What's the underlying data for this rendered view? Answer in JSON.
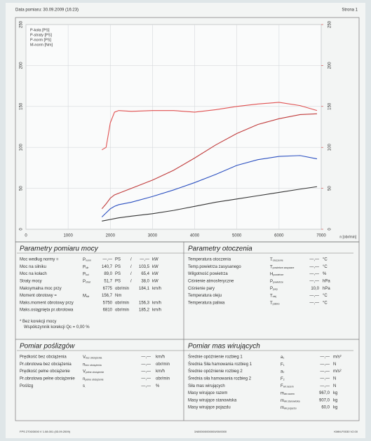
{
  "header": {
    "left": "Data pomiaru: 30.09.2009 (16:23)",
    "right": "Strona 1"
  },
  "chart_data": {
    "type": "line",
    "x_label": "n [obr/min]",
    "x": [
      1800,
      1900,
      2000,
      2100,
      2200,
      2500,
      3000,
      3500,
      4000,
      4500,
      5000,
      5500,
      6000,
      6500,
      6900
    ],
    "series": [
      {
        "name": "P-koła [PS]",
        "color": "#2a4fc0",
        "values": [
          15,
          20,
          25,
          28,
          30,
          33,
          40,
          48,
          57,
          67,
          78,
          85,
          89,
          90,
          86
        ]
      },
      {
        "name": "P-straty [PS]",
        "color": "#333333",
        "values": [
          10,
          11,
          12,
          13,
          14,
          16,
          19,
          23,
          28,
          33,
          37,
          41,
          45,
          49,
          52
        ]
      },
      {
        "name": "P-norm [PS]",
        "color": "#c03a3a",
        "values": [
          25,
          31,
          38,
          42,
          44,
          50,
          60,
          72,
          87,
          103,
          117,
          128,
          135,
          140,
          141
        ]
      },
      {
        "name": "M-norm [Nm]",
        "color": "#e05050",
        "axis": "y2",
        "values": [
          97,
          100,
          130,
          143,
          145,
          144,
          145,
          145,
          143,
          146,
          150,
          153,
          155,
          151,
          145
        ]
      }
    ],
    "xlim": [
      0,
      7000
    ],
    "xticks": [
      0,
      1000,
      2000,
      3000,
      4000,
      5000,
      6000,
      7000
    ],
    "ylim": [
      0,
      250
    ],
    "yticks": [
      0,
      50,
      100,
      150,
      200,
      250
    ],
    "y2lim": [
      0,
      250
    ],
    "y2ticks": [
      0,
      50,
      100,
      150,
      200,
      250
    ],
    "y2_color": "#d04040",
    "grid": true,
    "legend": "top-left"
  },
  "power": {
    "title": "Parametry pomiaru mocy",
    "rows": [
      {
        "label": "Moc według normy =",
        "sym": {
          "main": "P",
          "sub": "norm"
        },
        "cells": [
          "—,—",
          "PS",
          "/",
          "—,—",
          "kW"
        ],
        "color": "#d03030"
      },
      {
        "label": "Moc na silniku",
        "sym": {
          "main": "P",
          "sub": "silr"
        },
        "cells": [
          "140,7",
          "PS",
          "/",
          "103,5",
          "kW"
        ],
        "color": "#d03030"
      },
      {
        "label": "Moc na kołach",
        "sym": {
          "main": "P",
          "sub": "koł"
        },
        "cells": [
          "89,0",
          "PS",
          "/",
          "65,4",
          "kW"
        ],
        "color": "#2a4fc0"
      },
      {
        "label": "Straty mocy",
        "sym": {
          "main": "P",
          "sub": "strat"
        },
        "cells": [
          "51,7",
          "PS",
          "/",
          "38,0",
          "kW"
        ],
        "color": "#3a9a5a"
      },
      {
        "label": "Maksymalna moc przy",
        "cells": [
          "6775",
          "obr/min",
          "184,1",
          "km/h"
        ]
      },
      {
        "label": "Moment obrotowy =",
        "sym": {
          "main": "M",
          "sub": "silr"
        },
        "cells": [
          "156,7",
          "Nm"
        ],
        "color": "#d03030"
      },
      {
        "label": "Maks.moment obrotowy przy",
        "cells": [
          "5750",
          "obr/min",
          "156,3",
          "km/h"
        ]
      },
      {
        "label": "Maks.osiągnięta pr.obrotowa",
        "cells": [
          "6810",
          "obr/min",
          "185,2",
          "km/h"
        ]
      }
    ],
    "notes": [
      "* Bez korekcji mocy",
      "Współczynnik korekcji Qc = 0,00 %"
    ]
  },
  "ambient": {
    "title": "Parametry otoczenia",
    "rows": [
      {
        "label": "Temperatura otoczenia",
        "sym": {
          "main": "T",
          "sub": "otoczenie"
        },
        "cells": [
          "—,—",
          "°C"
        ]
      },
      {
        "label": "Temp.powietrza zasysanego",
        "sym": {
          "main": "T",
          "sub": "powietrze zasysane"
        },
        "cells": [
          "—,—",
          "°C"
        ]
      },
      {
        "label": "Wilgotność powietrza",
        "sym": {
          "main": "H",
          "sub": "powietrze"
        },
        "cells": [
          "—,—",
          "%"
        ]
      },
      {
        "label": "Ciśnienie atmosferyczne",
        "sym": {
          "main": "P",
          "sub": "powietrze"
        },
        "cells": [
          "—,—",
          "hPa"
        ]
      },
      {
        "label": "Ciśnienie pary",
        "sym": {
          "main": "P",
          "sub": "pary"
        },
        "cells": [
          "10,0",
          "hPa"
        ]
      },
      {
        "label": "Temperatura oleju",
        "sym": {
          "main": "T",
          "sub": "olej"
        },
        "cells": [
          "—,—",
          "°C"
        ]
      },
      {
        "label": "Temperatura paliwa",
        "sym": {
          "main": "T",
          "sub": "paliwo"
        },
        "cells": [
          "—,—",
          "°C"
        ]
      }
    ]
  },
  "slip": {
    "title": "Pomiar poślizgów",
    "rows": [
      {
        "label": "Prędkość bez obciążenia",
        "sym": {
          "main": "V",
          "sub": "bez obciążenia"
        },
        "cells": [
          "—,—",
          "km/h"
        ]
      },
      {
        "label": "Pr.obrotowa bez obciążenia",
        "sym": {
          "main": "n",
          "sub": "bez obciążenia"
        },
        "cells": [
          "—,—",
          "obr/min"
        ]
      },
      {
        "label": "Prędkość pełne obciążenie",
        "sym": {
          "main": "V",
          "sub": "pełne obciążenie"
        },
        "cells": [
          "—,—",
          "km/h"
        ]
      },
      {
        "label": "Pr.obrotowa pełne obciążenie",
        "sym": {
          "main": "n",
          "sub": "pełne obciążenie"
        },
        "cells": [
          "—,—",
          "obr/min"
        ]
      },
      {
        "label": "Poślizg",
        "sym": {
          "main": "s",
          "sub": "."
        },
        "cells": [
          "—,—",
          "%"
        ]
      }
    ]
  },
  "masses": {
    "title": "Pomiar mas wirujących",
    "rows": [
      {
        "label": "Średnie opóźnienie rozbieg 1",
        "sym": {
          "main": "a",
          "sub": "1"
        },
        "cells": [
          "—,—",
          "m/s²"
        ]
      },
      {
        "label": "Średnia Siła hamowania rozbieg 1",
        "sym": {
          "main": "F",
          "sub": "1"
        },
        "cells": [
          "—,—",
          "N"
        ]
      },
      {
        "label": "Średnie opóźnienie rozbieg 2",
        "sym": {
          "main": "a",
          "sub": "2"
        },
        "cells": [
          "—,—",
          "m/s²"
        ]
      },
      {
        "label": "Średnia siła hamowania rozbieg 2",
        "sym": {
          "main": "F",
          "sub": "2"
        },
        "cells": [
          "—,—",
          "N"
        ]
      },
      {
        "label": "Siła mas wirujących",
        "sym": {
          "main": "F",
          "sub": "wir.razem"
        },
        "cells": [
          "—,—",
          "N"
        ]
      },
      {
        "label": "Masy wirujące razem",
        "sym": {
          "main": "m",
          "sub": "wir.razem"
        },
        "cells": [
          "967,0",
          "kg"
        ]
      },
      {
        "label": "Masy wirujące stanowiska",
        "sym": {
          "main": "m",
          "sub": "wir.stanowiska"
        },
        "cells": [
          "907,0",
          "kg"
        ]
      },
      {
        "label": "Masy wirujące pojazdu",
        "sym": {
          "main": "m",
          "sub": "wir.pojazdu"
        },
        "cells": [
          "60,0",
          "kg"
        ]
      }
    ]
  },
  "footer": {
    "left": "FPS 2700/3000 V 1.08.001 (03.09.2009)",
    "center": "1N0000/0000000/00/0000",
    "right": "KMM-F0030 V2.00"
  }
}
